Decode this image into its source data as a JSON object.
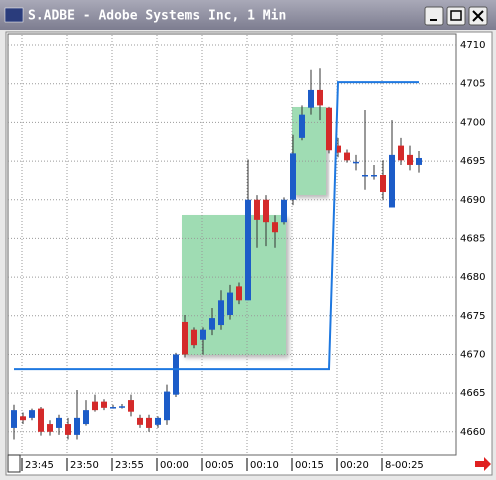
{
  "chart_data": {
    "type": "candlestick",
    "title": "S.ADBE - Adobe Systems Inc, 1 Min",
    "categories": [
      null,
      null,
      null,
      "23:45",
      null,
      null,
      null,
      null,
      "23:50",
      null,
      null,
      null,
      null,
      "23:55",
      null,
      null,
      null,
      null,
      "00:00",
      null,
      null,
      null,
      null,
      "00:05",
      null,
      null,
      null,
      null,
      "00:10",
      null,
      null,
      null,
      null,
      "00:15",
      null,
      null,
      null,
      null,
      "00:20",
      null,
      null,
      null,
      null,
      "8-00:25",
      null,
      null
    ],
    "open": [
      4660.5,
      4662,
      4661.8,
      4663,
      4661,
      4660.5,
      4661,
      4659.6,
      4661,
      4663.9,
      4663.9,
      4663.2,
      4663.3,
      4664.1,
      4661.8,
      4661.8,
      4660.9,
      4661.5,
      4664.8,
      4674.2,
      4673.2,
      4671.9,
      4673.2,
      4673.8,
      4675.1,
      4678.8,
      4677,
      4690,
      4690,
      4687.1,
      4687.1,
      4690,
      4698,
      4701.9,
      4704.2,
      4701.9,
      4697,
      4696.1,
      4694.9,
      4693.2,
      4693.2,
      4693.2,
      4689,
      4697,
      4695.8,
      4694.5
    ],
    "high": [
      4663.5,
      4662.5,
      4663,
      4663.2,
      4661.5,
      4662.2,
      4661.8,
      4665.4,
      4664.1,
      4664.8,
      4664.2,
      4663.5,
      4663.6,
      4664.8,
      4662.2,
      4662.2,
      4662,
      4666.1,
      4670.2,
      4675.1,
      4673.5,
      4673.5,
      4676,
      4678.3,
      4679,
      4679.3,
      4695.2,
      4690.6,
      4690.6,
      4688,
      4690.3,
      4698.4,
      4702.2,
      4706.8,
      4707,
      4702,
      4698,
      4696.5,
      4695.8,
      4701.6,
      4694.5,
      4695.1,
      4700.3,
      4698,
      4697,
      4696.3
    ],
    "low": [
      4659,
      4661,
      4661.5,
      4659.5,
      4659.5,
      4659.6,
      4659,
      4659,
      4660.8,
      4662.6,
      4662.8,
      4663,
      4663,
      4662,
      4660.5,
      4660,
      4660.5,
      4660.9,
      4664.5,
      4669.6,
      4670.8,
      4670,
      4672.5,
      4673.2,
      4674.5,
      4676.5,
      4677,
      4683.8,
      4684,
      4683.8,
      4686.8,
      4689.3,
      4697.7,
      4701,
      4700.3,
      4696,
      4695.5,
      4694.8,
      4693.8,
      4691.3,
      4692.6,
      4690,
      4689,
      4694.5,
      4693.8,
      4693.5
    ],
    "close": [
      4662.8,
      4661.5,
      4662.8,
      4660,
      4660,
      4661.8,
      4659.6,
      4661.8,
      4662.8,
      4662.8,
      4663.1,
      4663.2,
      4663.3,
      4662.6,
      4660.9,
      4660.5,
      4661.8,
      4665.2,
      4670,
      4670,
      4671.2,
      4673.2,
      4674.7,
      4677,
      4678,
      4677,
      4690,
      4687.4,
      4687.1,
      4685.8,
      4690,
      4696,
      4701,
      4704.2,
      4702.2,
      4696.4,
      4696.1,
      4695.1,
      4694.9,
      4693.2,
      4693.2,
      4691,
      4695.8,
      4695.1,
      4694.5,
      4695.4
    ],
    "up_color": "#1c5cc8",
    "down_color": "#d42a2a",
    "line": {
      "color": "#1e78e0",
      "values": [
        4668.1,
        4668.1,
        4668.1,
        4668.1,
        4668.1,
        4668.1,
        4668.1,
        4668.1,
        4668.1,
        4668.1,
        4668.1,
        4668.1,
        4668.1,
        4668.1,
        4668.1,
        4668.1,
        4668.1,
        4668.1,
        4668.1,
        4668.1,
        4668.1,
        4668.1,
        4668.1,
        4668.1,
        4668.1,
        4668.1,
        4668.1,
        4668.1,
        4668.1,
        4668.1,
        4668.1,
        4668.1,
        4668.1,
        4668.1,
        4668.1,
        4668.1,
        4705.2,
        4705.2,
        4705.2,
        4705.2,
        4705.2,
        4705.2,
        4705.2,
        4705.2,
        4705.2,
        4705.2
      ]
    },
    "ylim": [
      4657,
      4711.3
    ],
    "yticks": [
      4660,
      4665,
      4670,
      4675,
      4680,
      4685,
      4690,
      4695,
      4700,
      4705,
      4710
    ],
    "grid": true
  }
}
